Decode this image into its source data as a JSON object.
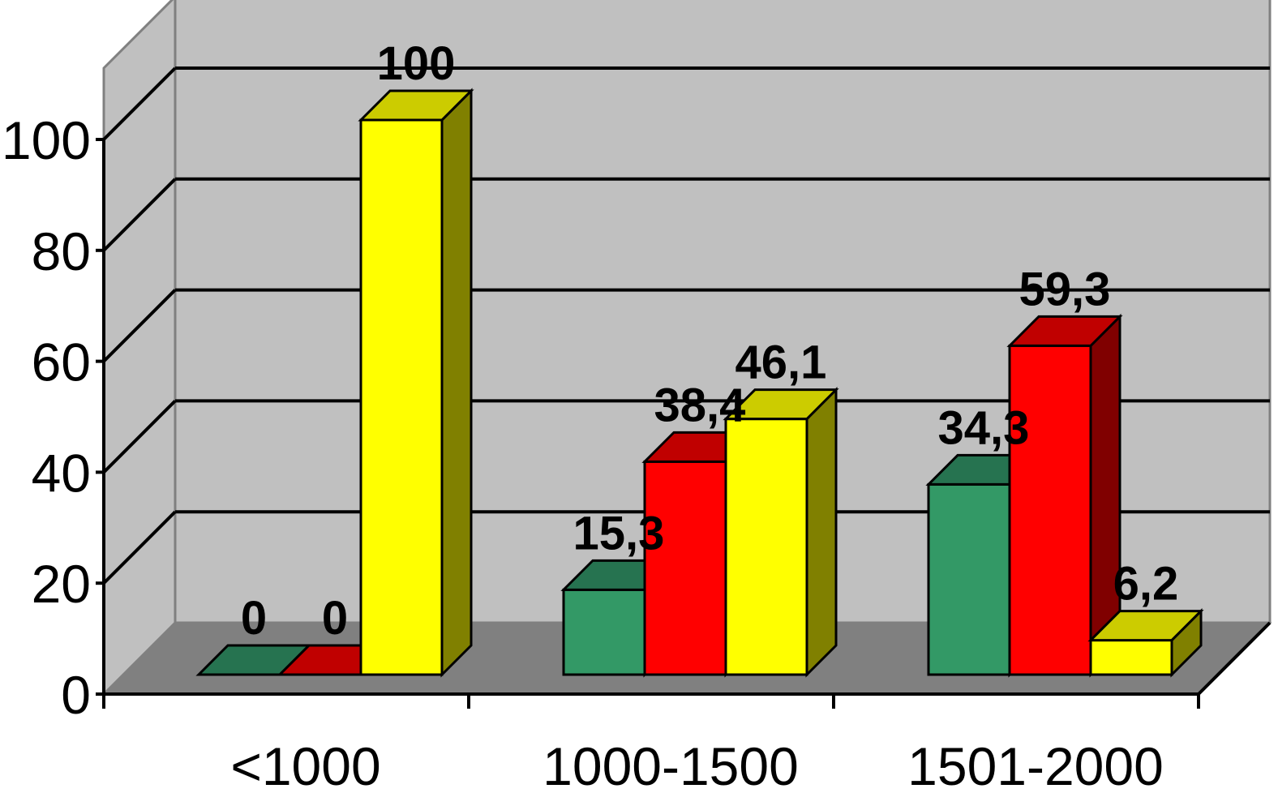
{
  "chart_data": {
    "type": "bar",
    "style": "3d-clustered-column",
    "categories": [
      "<1000",
      "1000-1500",
      "1501-2000"
    ],
    "series": [
      {
        "color": "#339966",
        "top_color": "#267350",
        "side_color": "#1a4d36",
        "values": [
          0,
          15.3,
          34.3
        ],
        "labels": [
          "0",
          "15,3",
          "34,3"
        ]
      },
      {
        "color": "#ff0000",
        "top_color": "#c00000",
        "side_color": "#800000",
        "values": [
          0,
          38.4,
          59.3
        ],
        "labels": [
          "0",
          "38,4",
          "59,3"
        ]
      },
      {
        "color": "#ffff00",
        "top_color": "#cccc00",
        "side_color": "#808000",
        "values": [
          100,
          46.1,
          6.2
        ],
        "labels": [
          "100",
          "46,1",
          "6,2"
        ]
      }
    ],
    "ylim": [
      0,
      100
    ],
    "yticks": [
      0,
      20,
      40,
      60,
      80,
      100
    ],
    "ytick_labels": [
      "0",
      "20",
      "40",
      "60",
      "80",
      "100"
    ],
    "grid": true,
    "colors": {
      "back_wall": "#c0c0c0",
      "side_wall": "#c0c0c0",
      "floor": "#808080",
      "grid": "#000000"
    }
  }
}
